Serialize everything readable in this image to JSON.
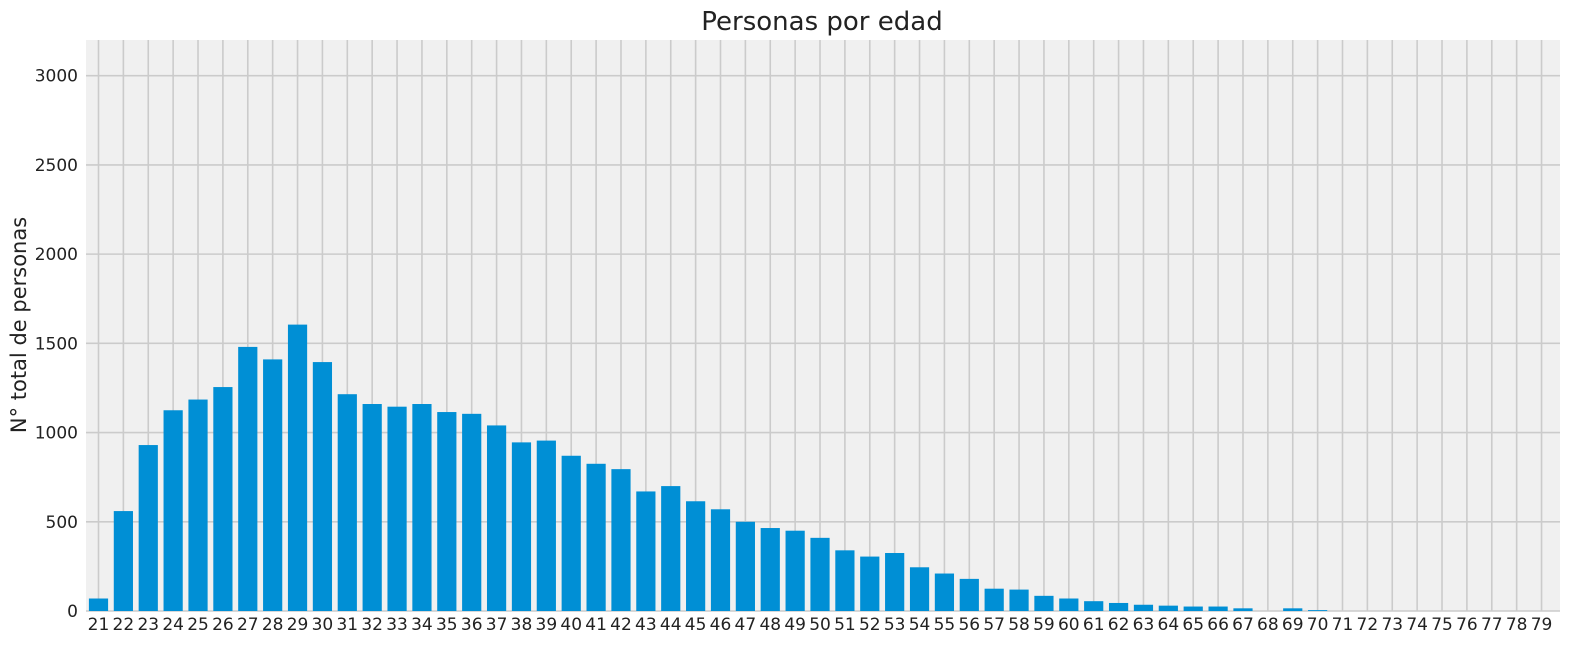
{
  "chart_data": {
    "type": "bar",
    "title": "Personas por edad",
    "xlabel": "",
    "ylabel": "N° total de personas",
    "ylim": [
      0,
      3200
    ],
    "yticks": [
      0,
      500,
      1000,
      1500,
      2000,
      2500,
      3000
    ],
    "grid": true,
    "bar_color": "#008fd5",
    "background_color": "#f0f0f0",
    "grid_color": "#cbcbcb",
    "categories": [
      "21",
      "22",
      "23",
      "24",
      "25",
      "26",
      "27",
      "28",
      "29",
      "30",
      "31",
      "32",
      "33",
      "34",
      "35",
      "36",
      "37",
      "38",
      "39",
      "40",
      "41",
      "42",
      "43",
      "44",
      "45",
      "46",
      "47",
      "48",
      "49",
      "50",
      "51",
      "52",
      "53",
      "54",
      "55",
      "56",
      "57",
      "58",
      "59",
      "60",
      "61",
      "62",
      "63",
      "64",
      "65",
      "66",
      "67",
      "68",
      "69",
      "70",
      "71",
      "72",
      "73",
      "74",
      "75",
      "76",
      "77",
      "78",
      "79"
    ],
    "values": [
      70,
      560,
      930,
      1125,
      1185,
      1255,
      1480,
      1410,
      1605,
      1395,
      1215,
      1160,
      1145,
      1160,
      1115,
      1105,
      1040,
      945,
      955,
      870,
      825,
      795,
      670,
      700,
      615,
      570,
      500,
      465,
      450,
      410,
      340,
      305,
      325,
      245,
      210,
      180,
      125,
      120,
      85,
      70,
      55,
      45,
      35,
      30,
      25,
      25,
      15,
      0,
      15,
      5,
      0,
      0,
      0,
      0,
      0,
      0,
      0,
      0,
      0
    ]
  }
}
